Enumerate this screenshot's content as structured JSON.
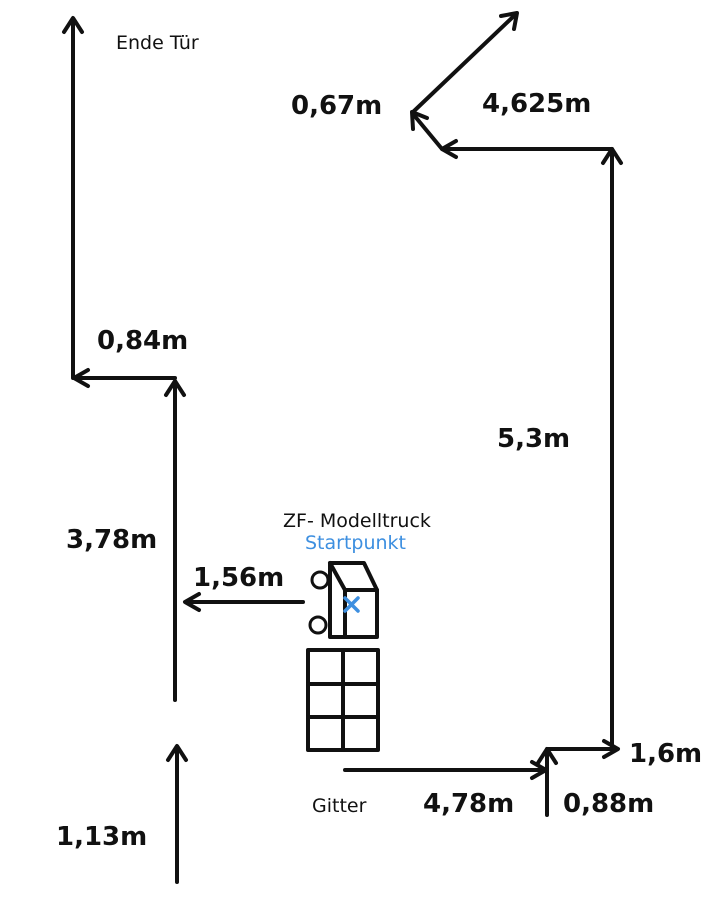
{
  "labels": {
    "ende_tuer": "Ende Tür",
    "d_067": "0,67m",
    "d_4625": "4,625m",
    "d_084": "0,84m",
    "d_53": "5,3m",
    "d_378": "3,78m",
    "truck_name": "ZF- Modelltruck",
    "startpunkt": "Startpunkt",
    "d_156": "1,56m",
    "d_16": "1,6m",
    "gitter": "Gitter",
    "d_478": "4,78m",
    "d_088": "0,88m",
    "d_113": "1,13m"
  },
  "colors": {
    "ink": "#111111",
    "accent": "#3d8fe0"
  },
  "icons": {
    "arrow_head": "arrow-head-icon",
    "start_marker": "cross-icon"
  }
}
